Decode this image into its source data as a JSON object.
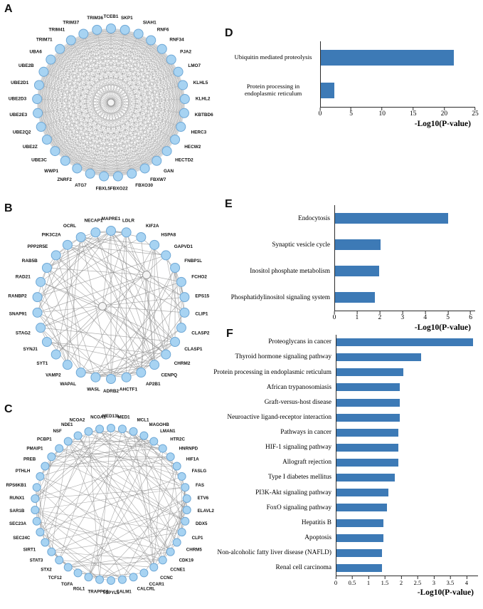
{
  "figure": {
    "panels": {
      "A": "A",
      "B": "B",
      "C": "C",
      "D": "D",
      "E": "E",
      "F": "F"
    }
  },
  "colors": {
    "bar": "#3d7ab6",
    "node_fill": "#a7d3f2",
    "node_stroke": "#6fa8d6",
    "hub_fill": "#f4f4f4",
    "hub_stroke": "#9a9a9a",
    "edge": "#8f8f8f",
    "axis": "#2b2b2b"
  },
  "networks": {
    "A": {
      "description": "ubiquitin gene interaction network",
      "nodes": [
        "TCEB1",
        "SKP1",
        "SIAH1",
        "RNF6",
        "RNF34",
        "PJA2",
        "LMO7",
        "KLHL5",
        "KLHL2",
        "KBTBD6",
        "HERC3",
        "HECW2",
        "HECTD2",
        "GAN",
        "FBXW7",
        "FBXO30",
        "FBXO22",
        "FBXL5",
        "ATG7",
        "ZNRF2",
        "WWP1",
        "UBE3C",
        "UBE2Z",
        "UBE2Q2",
        "UBE2E3",
        "UBE2D3",
        "UBE2D1",
        "UBE2B",
        "UBA6",
        "TRIM71",
        "TRIM41",
        "TRIM37",
        "TRIM36"
      ]
    },
    "B": {
      "description": "endocytosis gene interaction network",
      "nodes": [
        "MAPRE1",
        "LDLR",
        "KIF2A",
        "HSPA8",
        "GAPVD1",
        "FNBP1L",
        "FCHO2",
        "EPS15",
        "CLIP1",
        "CLASP2",
        "CLASP1",
        "CHRM2",
        "CENPQ",
        "AP2B1",
        "AHCTF1",
        "ADRB2",
        "WASL",
        "WAPAL",
        "VAMP2",
        "SYT1",
        "SYNJ1",
        "STAG2",
        "SNAP91",
        "RANBP2",
        "RAD21",
        "RAB5B",
        "PPP2R5E",
        "PIK3C2A",
        "OCRL",
        "NECAP1"
      ]
    },
    "C": {
      "description": "pathway gene interaction network",
      "nodes": [
        "MED13L",
        "MED1",
        "MCL1",
        "MAGOHB",
        "LMAN1",
        "HTR2C",
        "HNRNPD",
        "HIF1A",
        "FASLG",
        "FAS",
        "ETV6",
        "ELAVL2",
        "DDX5",
        "CLP1",
        "CHRM5",
        "CDK19",
        "CCNE1",
        "CCNC",
        "CCAR1",
        "CALCRL",
        "CALM1",
        "TSPYL1",
        "TRAPPC8",
        "RGL1",
        "TGFA",
        "TCF12",
        "STX2",
        "STAT3",
        "SIRT1",
        "SEC24C",
        "SEC23A",
        "SAR1B",
        "RUNX1",
        "RPS6KB1",
        "PTHLH",
        "PREB",
        "PMAIP1",
        "PCBP1",
        "NSF",
        "NDE1",
        "NCOA2",
        "NCOA1"
      ]
    }
  },
  "chart_data": [
    {
      "panel": "D",
      "type": "bar",
      "orientation": "horizontal",
      "categories": [
        "Ubiquitin mediated proteolysis",
        "Protein processing in endoplasmic reticulum"
      ],
      "values": [
        21.5,
        2.2
      ],
      "xlabel": "-Log10(P-value)",
      "xticks": [
        0,
        5,
        10,
        15,
        20,
        25
      ],
      "xlim": [
        0,
        25
      ],
      "legend": false,
      "grid": false
    },
    {
      "panel": "E",
      "type": "bar",
      "orientation": "horizontal",
      "categories": [
        "Endocytosis",
        "Synaptic vesicle cycle",
        "Inositol phosphate metabolism",
        "Phosphatidylinositol signaling system"
      ],
      "values": [
        5.0,
        2.0,
        1.95,
        1.75
      ],
      "xlabel": "-Log10(P-value)",
      "xticks": [
        0,
        1,
        2,
        3,
        4,
        5,
        6
      ],
      "xlim": [
        0,
        6.2
      ],
      "legend": false,
      "grid": false
    },
    {
      "panel": "F",
      "type": "bar",
      "orientation": "horizontal",
      "categories": [
        "Proteoglycans in cancer",
        "Thyroid hormone signaling pathway",
        "Protein processing in endoplasmic reticulum",
        "African trypanosomiasis",
        "Graft-versus-host disease",
        "Neuroactive ligand-receptor interaction",
        "Pathways in cancer",
        "HIF-1 signaling pathway",
        "Allograft rejection",
        "Type I diabetes mellitus",
        "PI3K-Akt signaling pathway",
        "FoxO signaling pathway",
        "Hepatitis B",
        "Apoptosis",
        "Non-alcoholic fatty liver disease (NAFLD)",
        "Renal cell carcinoma"
      ],
      "values": [
        4.2,
        2.6,
        2.05,
        1.95,
        1.95,
        1.95,
        1.9,
        1.9,
        1.9,
        1.8,
        1.6,
        1.55,
        1.45,
        1.45,
        1.4,
        1.4
      ],
      "xlabel": "-Log10(P-value)",
      "xticks": [
        0,
        0.5,
        1,
        1.5,
        2,
        2.5,
        3,
        3.5,
        4
      ],
      "xlim": [
        0,
        4.35
      ],
      "legend": false,
      "grid": false
    }
  ]
}
